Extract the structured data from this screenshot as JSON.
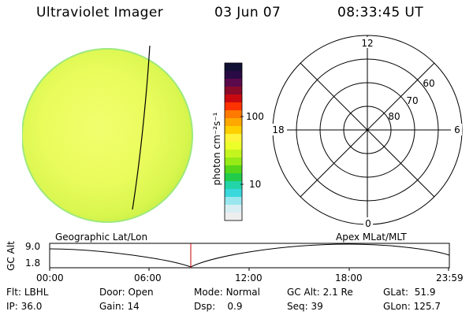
{
  "header": {
    "instrument": "Ultraviolet Imager",
    "date": "03 Jun 07",
    "time": "08:33:45 UT"
  },
  "colorbar": {
    "unit_label": "photon cm⁻²s⁻¹",
    "tick_labels": [
      "100",
      "10"
    ],
    "colors": [
      "#111133",
      "#2a0a44",
      "#5a0a4a",
      "#8a0a2a",
      "#c80a10",
      "#ff3300",
      "#ff7a00",
      "#ffa800",
      "#ffd000",
      "#fff43a",
      "#ecff2a",
      "#c4f51f",
      "#96ea16",
      "#55d61a",
      "#22cc4a",
      "#22d4a8",
      "#3ad8dc",
      "#9ae6ee",
      "#d8eef2",
      "#eeeeee"
    ]
  },
  "polar_plot": {
    "mlt_labels": {
      "top": "12",
      "left": "18",
      "right": "6",
      "bottom": "0"
    },
    "mlat_labels": [
      "60",
      "70",
      "80"
    ]
  },
  "timeline": {
    "left_caption": "Geographic Lat/Lon",
    "right_caption": "Apex  MLat/MLT",
    "axis_label": "GC Alt",
    "y_labels": [
      "9.0",
      "1.8"
    ],
    "x_labels": [
      "00:00",
      "06:00",
      "12:00",
      "18:00",
      "23:59"
    ],
    "marker_color": "#cc0000"
  },
  "footer": {
    "row1": [
      {
        "label": "Flt:",
        "value": "LBHL"
      },
      {
        "label": "Door:",
        "value": "Open"
      },
      {
        "label": "Mode:",
        "value": "Normal"
      },
      {
        "label": "GC Alt:",
        "value": "2.1 Re"
      },
      {
        "label": "GLat:",
        "value": "51.9"
      }
    ],
    "row2": [
      {
        "label": "IP:",
        "value": "36.0"
      },
      {
        "label": "Gain:",
        "value": "14"
      },
      {
        "label": "Dsp:",
        "value": "0.9"
      },
      {
        "label": "Seq:",
        "value": "39"
      },
      {
        "label": "GLon:",
        "value": "125.7"
      }
    ]
  }
}
